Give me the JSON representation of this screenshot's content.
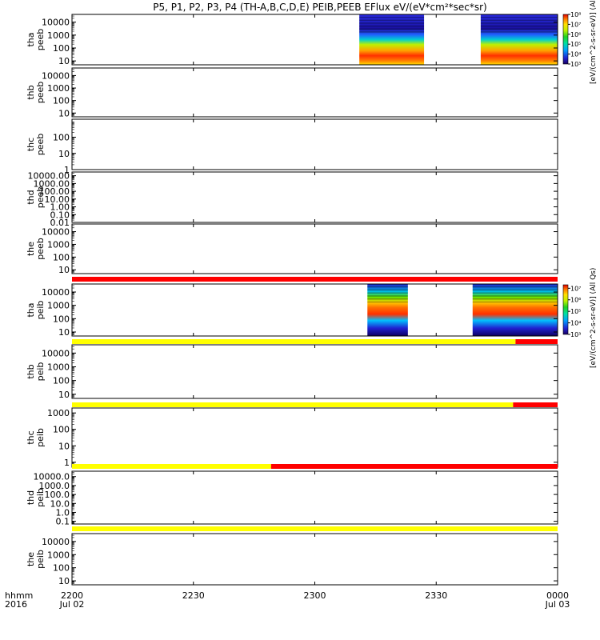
{
  "title": "P5, P1, P2, P3, P4 (TH-A,B,C,D,E) PEIB,PEEB EFlux eV/(eV*cm²*sec*sr)",
  "colorbars": [
    {
      "label": "[eV/(cm^2-s-sr-eV)] (All Qs)",
      "ticks": [
        "10³",
        "10⁴",
        "10⁵",
        "10⁶",
        "10⁷",
        "10⁸"
      ],
      "log_range": [
        3,
        8
      ]
    },
    {
      "label": "[eV/(cm^2-s-sr-eV)] (All Qs)",
      "ticks": [
        "10³",
        "10⁴",
        "10⁵",
        "10⁶",
        "10⁷"
      ],
      "log_range": [
        3,
        7.3
      ]
    }
  ],
  "x_axis": {
    "corner_labels": [
      "hhmm",
      "2016"
    ],
    "ticks": [
      {
        "hhmm": "2200",
        "date": "Jul 02"
      },
      {
        "hhmm": "2230",
        "date": ""
      },
      {
        "hhmm": "2300",
        "date": ""
      },
      {
        "hhmm": "2330",
        "date": ""
      },
      {
        "hhmm": "0000",
        "date": "Jul 03"
      }
    ]
  },
  "colors": {
    "yellow": "#ffff00",
    "red": "#ff0000"
  },
  "chart_data": [
    {
      "type": "heatmap",
      "probe": "tha",
      "product": "peeb",
      "ylabel": [
        "tha",
        "peeb"
      ],
      "yticks": [
        "10",
        "100",
        "1000",
        "10000"
      ],
      "ylim": [
        5,
        40000
      ],
      "data_intervals_min": [
        [
          35.5,
          43.5
        ],
        [
          50.5,
          60
        ]
      ],
      "colorbar": 0,
      "status_bar": {
        "segments": [
          {
            "from": 0,
            "to": 60,
            "color": "red"
          }
        ]
      }
    },
    {
      "type": "heatmap",
      "probe": "thb",
      "product": "peeb",
      "ylabel": [
        "thb",
        "peeb"
      ],
      "yticks": [
        "10",
        "100",
        "1000",
        "10000"
      ],
      "ylim": [
        5,
        40000
      ],
      "data_intervals_min": []
    },
    {
      "type": "heatmap",
      "probe": "thc",
      "product": "peeb",
      "ylabel": [
        "thc",
        "peeb"
      ],
      "yticks": [
        "1",
        "10",
        "100"
      ],
      "ylim": [
        1,
        1300
      ],
      "data_intervals_min": []
    },
    {
      "type": "heatmap",
      "probe": "thd",
      "product": "peeb",
      "ylabel": [
        "thd",
        "peeb"
      ],
      "yticks": [
        "0.01",
        "0.10",
        "1.00",
        "10.00",
        "100.00",
        "1000.00",
        "10000.00"
      ],
      "ylim": [
        0.01,
        30000
      ],
      "data_intervals_min": []
    },
    {
      "type": "heatmap",
      "probe": "the",
      "product": "peeb",
      "ylabel": [
        "the",
        "peeb"
      ],
      "yticks": [
        "10",
        "100",
        "1000",
        "10000"
      ],
      "ylim": [
        5,
        40000
      ],
      "data_intervals_min": []
    },
    {
      "type": "heatmap",
      "probe": "tha",
      "product": "peib",
      "ylabel": [
        "tha",
        "peib"
      ],
      "yticks": [
        "10",
        "100",
        "1000",
        "10000"
      ],
      "ylim": [
        5,
        40000
      ],
      "data_intervals_min": [
        [
          36.5,
          41.5
        ],
        [
          49.5,
          60
        ]
      ],
      "colorbar": 1,
      "status_bar": {
        "segments": [
          {
            "from": 0,
            "to": 54.8,
            "color": "yellow"
          },
          {
            "from": 54.8,
            "to": 60,
            "color": "red"
          }
        ]
      }
    },
    {
      "type": "heatmap",
      "probe": "thb",
      "product": "peib",
      "ylabel": [
        "thb",
        "peib"
      ],
      "yticks": [
        "10",
        "100",
        "1000",
        "10000"
      ],
      "ylim": [
        5,
        40000
      ],
      "data_intervals_min": [],
      "status_bar": {
        "segments": [
          {
            "from": 0,
            "to": 54.5,
            "color": "yellow"
          },
          {
            "from": 54.5,
            "to": 60,
            "color": "red"
          }
        ]
      }
    },
    {
      "type": "heatmap",
      "probe": "thc",
      "product": "peib",
      "ylabel": [
        "thc",
        "peib"
      ],
      "yticks": [
        "1",
        "10",
        "100",
        "1000"
      ],
      "ylim": [
        0.5,
        2000
      ],
      "data_intervals_min": [],
      "status_bar": {
        "segments": [
          {
            "from": 0,
            "to": 24.6,
            "color": "yellow"
          },
          {
            "from": 24.6,
            "to": 60,
            "color": "red"
          }
        ]
      }
    },
    {
      "type": "heatmap",
      "probe": "thd",
      "product": "peib",
      "ylabel": [
        "thd",
        "peib"
      ],
      "yticks": [
        "0.1",
        "1.0",
        "10.0",
        "100.0",
        "1000.0",
        "10000.0"
      ],
      "ylim": [
        0.05,
        40000
      ],
      "data_intervals_min": [],
      "status_bar": {
        "segments": [
          {
            "from": 0,
            "to": 60,
            "color": "yellow"
          }
        ]
      }
    },
    {
      "type": "heatmap",
      "probe": "the",
      "product": "peib",
      "ylabel": [
        "the",
        "peib"
      ],
      "yticks": [
        "10",
        "100",
        "1000",
        "10000"
      ],
      "ylim": [
        5,
        40000
      ],
      "data_intervals_min": []
    }
  ]
}
